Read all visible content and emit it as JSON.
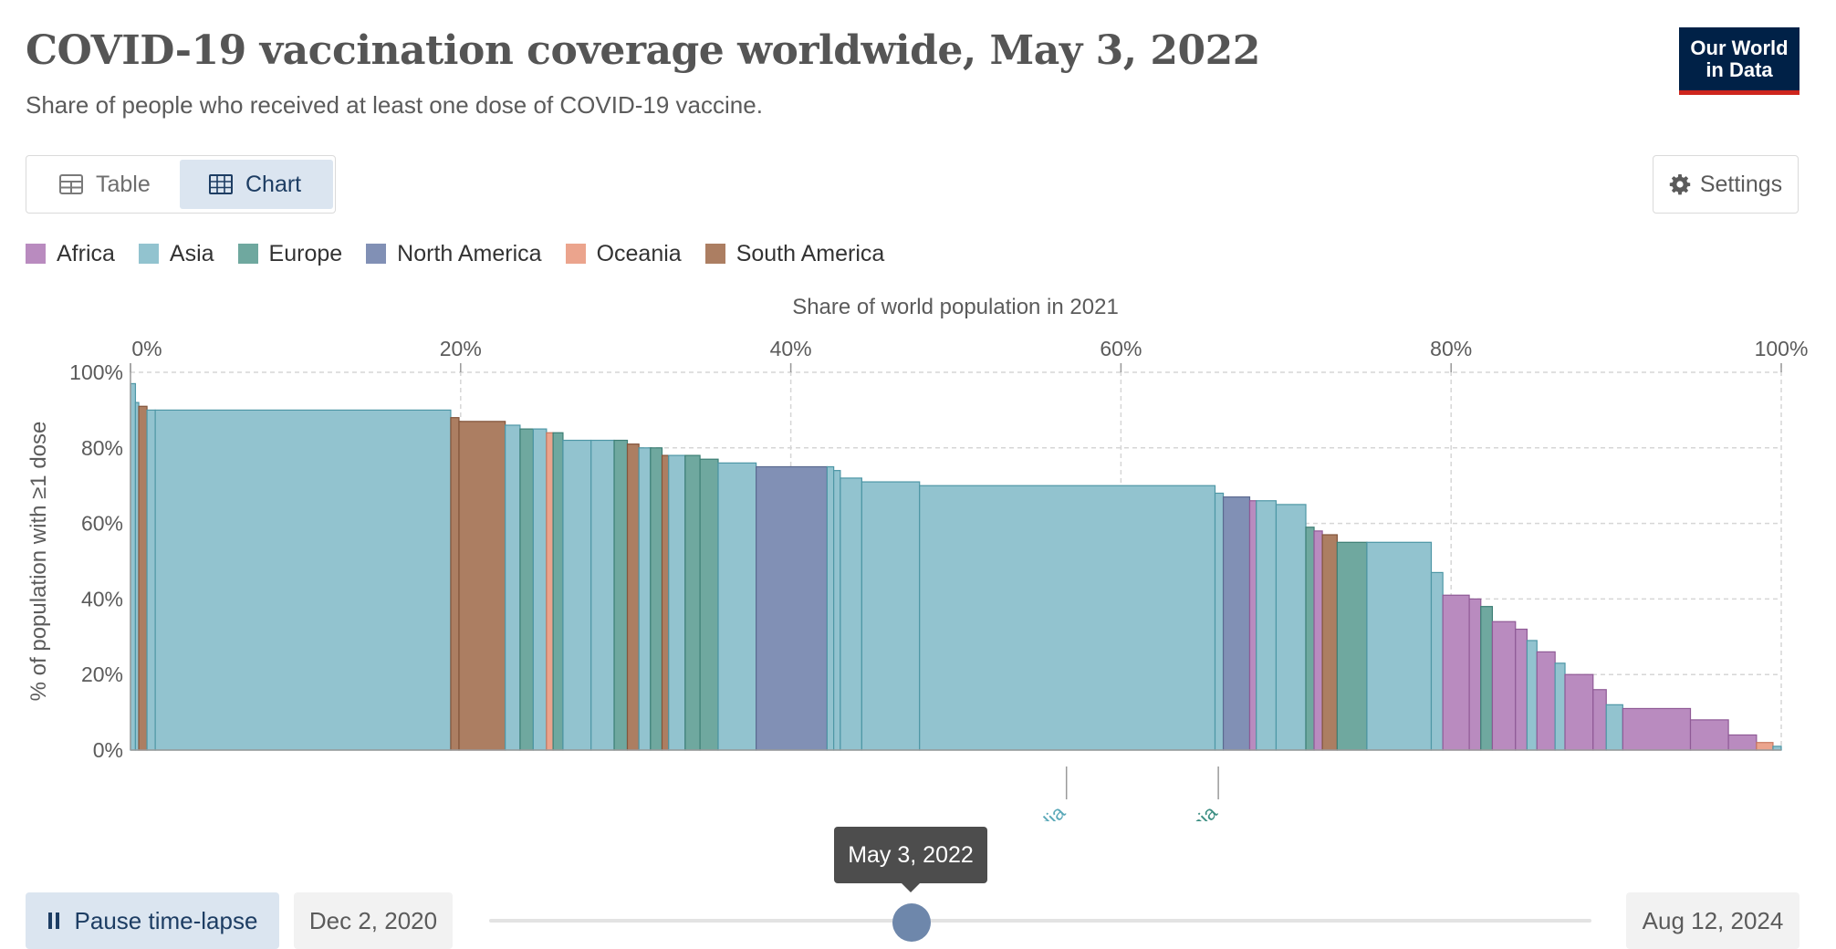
{
  "header": {
    "title": "COVID-19 vaccination coverage worldwide, May 3, 2022",
    "subtitle": "Share of people who received at least one dose of COVID-19 vaccine.",
    "logo_line1": "Our World",
    "logo_line2": "in Data"
  },
  "tabs": {
    "table_label": "Table",
    "chart_label": "Chart",
    "active": "Chart"
  },
  "settings_label": "Settings",
  "legend": [
    {
      "name": "Africa",
      "color": "#b98bbf"
    },
    {
      "name": "Asia",
      "color": "#92c3cf"
    },
    {
      "name": "Europe",
      "color": "#6fa89f"
    },
    {
      "name": "North America",
      "color": "#8190b5"
    },
    {
      "name": "Oceania",
      "color": "#eba48d"
    },
    {
      "name": "South America",
      "color": "#ac7e62"
    }
  ],
  "chart_data": {
    "type": "variable-width-bar",
    "x_axis_title": "Share of world population in 2021",
    "ylabel": "% of population with ≥1 dose",
    "xlim": [
      0,
      100
    ],
    "ylim": [
      0,
      100
    ],
    "x_ticks": [
      "0%",
      "20%",
      "40%",
      "60%",
      "80%",
      "100%"
    ],
    "y_ticks": [
      "0%",
      "20%",
      "40%",
      "60%",
      "80%",
      "100%"
    ],
    "grid": true,
    "annotations": [
      {
        "label": "India",
        "x": 56.7,
        "color": "#5aa8b8"
      },
      {
        "label": "Lithuania",
        "x": 65.9,
        "color": "#3d8f83"
      }
    ],
    "bars": [
      {
        "region": "Asia",
        "x0": 0,
        "x1": 0.3,
        "y": 97
      },
      {
        "region": "Asia",
        "x0": 0.3,
        "x1": 0.5,
        "y": 92
      },
      {
        "region": "South America",
        "x0": 0.5,
        "x1": 1.0,
        "y": 91
      },
      {
        "region": "Asia",
        "x0": 1.0,
        "x1": 1.5,
        "y": 90
      },
      {
        "region": "Asia",
        "x0": 1.5,
        "x1": 19.4,
        "y": 90
      },
      {
        "region": "South America",
        "x0": 19.4,
        "x1": 19.9,
        "y": 88
      },
      {
        "region": "South America",
        "x0": 19.9,
        "x1": 22.7,
        "y": 87
      },
      {
        "region": "Asia",
        "x0": 22.7,
        "x1": 23.6,
        "y": 86
      },
      {
        "region": "Europe",
        "x0": 23.6,
        "x1": 24.4,
        "y": 85
      },
      {
        "region": "Asia",
        "x0": 24.4,
        "x1": 25.2,
        "y": 85
      },
      {
        "region": "Oceania",
        "x0": 25.2,
        "x1": 25.6,
        "y": 84
      },
      {
        "region": "Europe",
        "x0": 25.6,
        "x1": 26.2,
        "y": 84
      },
      {
        "region": "Asia",
        "x0": 26.2,
        "x1": 27.9,
        "y": 82
      },
      {
        "region": "Asia",
        "x0": 27.9,
        "x1": 29.3,
        "y": 82
      },
      {
        "region": "Europe",
        "x0": 29.3,
        "x1": 30.1,
        "y": 82
      },
      {
        "region": "South America",
        "x0": 30.1,
        "x1": 30.8,
        "y": 81
      },
      {
        "region": "Asia",
        "x0": 30.8,
        "x1": 31.5,
        "y": 80
      },
      {
        "region": "Europe",
        "x0": 31.5,
        "x1": 32.2,
        "y": 80
      },
      {
        "region": "South America",
        "x0": 32.2,
        "x1": 32.6,
        "y": 78
      },
      {
        "region": "Asia",
        "x0": 32.6,
        "x1": 33.6,
        "y": 78
      },
      {
        "region": "Europe",
        "x0": 33.6,
        "x1": 34.5,
        "y": 78
      },
      {
        "region": "Europe",
        "x0": 34.5,
        "x1": 35.6,
        "y": 77
      },
      {
        "region": "Asia",
        "x0": 35.6,
        "x1": 37.9,
        "y": 76
      },
      {
        "region": "North America",
        "x0": 37.9,
        "x1": 42.2,
        "y": 75
      },
      {
        "region": "Asia",
        "x0": 42.2,
        "x1": 42.6,
        "y": 75
      },
      {
        "region": "Asia",
        "x0": 42.6,
        "x1": 43.0,
        "y": 74
      },
      {
        "region": "Asia",
        "x0": 43.0,
        "x1": 44.3,
        "y": 72
      },
      {
        "region": "Asia",
        "x0": 44.3,
        "x1": 47.8,
        "y": 71
      },
      {
        "region": "Asia",
        "x0": 47.8,
        "x1": 65.7,
        "y": 70
      },
      {
        "region": "Asia",
        "x0": 65.7,
        "x1": 66.2,
        "y": 68
      },
      {
        "region": "North America",
        "x0": 66.2,
        "x1": 67.8,
        "y": 67
      },
      {
        "region": "Africa",
        "x0": 67.8,
        "x1": 68.2,
        "y": 66
      },
      {
        "region": "Asia",
        "x0": 68.2,
        "x1": 69.4,
        "y": 66
      },
      {
        "region": "Asia",
        "x0": 69.4,
        "x1": 71.2,
        "y": 65
      },
      {
        "region": "Europe",
        "x0": 71.2,
        "x1": 71.7,
        "y": 59
      },
      {
        "region": "Africa",
        "x0": 71.7,
        "x1": 72.2,
        "y": 58
      },
      {
        "region": "South America",
        "x0": 72.2,
        "x1": 73.1,
        "y": 57
      },
      {
        "region": "Europe",
        "x0": 73.1,
        "x1": 74.9,
        "y": 55
      },
      {
        "region": "Asia",
        "x0": 74.9,
        "x1": 78.8,
        "y": 55
      },
      {
        "region": "Asia",
        "x0": 78.8,
        "x1": 79.5,
        "y": 47
      },
      {
        "region": "Africa",
        "x0": 79.5,
        "x1": 81.1,
        "y": 41
      },
      {
        "region": "Africa",
        "x0": 81.1,
        "x1": 81.8,
        "y": 40
      },
      {
        "region": "Europe",
        "x0": 81.8,
        "x1": 82.5,
        "y": 38
      },
      {
        "region": "Africa",
        "x0": 82.5,
        "x1": 83.9,
        "y": 34
      },
      {
        "region": "Africa",
        "x0": 83.9,
        "x1": 84.6,
        "y": 32
      },
      {
        "region": "Asia",
        "x0": 84.6,
        "x1": 85.2,
        "y": 29
      },
      {
        "region": "Africa",
        "x0": 85.2,
        "x1": 86.3,
        "y": 26
      },
      {
        "region": "Asia",
        "x0": 86.3,
        "x1": 86.9,
        "y": 23
      },
      {
        "region": "Africa",
        "x0": 86.9,
        "x1": 88.6,
        "y": 20
      },
      {
        "region": "Africa",
        "x0": 88.6,
        "x1": 89.4,
        "y": 16
      },
      {
        "region": "Asia",
        "x0": 89.4,
        "x1": 90.4,
        "y": 12
      },
      {
        "region": "Africa",
        "x0": 90.4,
        "x1": 94.5,
        "y": 11
      },
      {
        "region": "Africa",
        "x0": 94.5,
        "x1": 96.8,
        "y": 8
      },
      {
        "region": "Africa",
        "x0": 96.8,
        "x1": 98.5,
        "y": 4
      },
      {
        "region": "Oceania",
        "x0": 98.5,
        "x1": 99.5,
        "y": 2
      },
      {
        "region": "Asia",
        "x0": 99.5,
        "x1": 100,
        "y": 1
      }
    ]
  },
  "timeline": {
    "pause_label": "Pause time-lapse",
    "start_date": "Dec 2, 2020",
    "end_date": "Aug 12, 2024",
    "current_date": "May 3, 2022"
  }
}
